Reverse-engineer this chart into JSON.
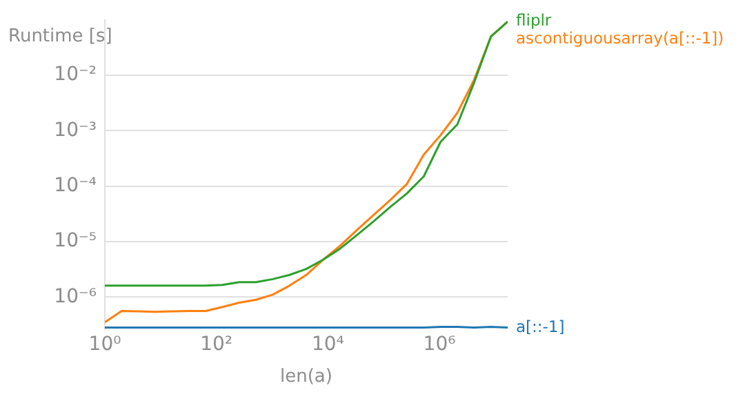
{
  "chart_data": {
    "type": "line",
    "ylabel": "Runtime [s]",
    "xlabel": "len(a)",
    "log": "xy",
    "grid": "y",
    "legend": false,
    "marker": "none",
    "line_style": "solid",
    "x": [
      1,
      2,
      4,
      8,
      16,
      32,
      64,
      128,
      256,
      512,
      1024,
      2048,
      4096,
      8192,
      16384,
      32768,
      65536,
      131072,
      262144,
      524288,
      1048576,
      2097152,
      4194304,
      8388608,
      16777216
    ],
    "xlim": [
      1,
      16777216
    ],
    "ylim": [
      2.6e-07,
      0.1
    ],
    "xticks": [
      {
        "value": 1,
        "label": "10⁰"
      },
      {
        "value": 100,
        "label": "10²"
      },
      {
        "value": 10000,
        "label": "10⁴"
      },
      {
        "value": 1000000,
        "label": "10⁶"
      }
    ],
    "yticks": [
      {
        "value": 1e-06,
        "label": "10⁻⁶"
      },
      {
        "value": 1e-05,
        "label": "10⁻⁵"
      },
      {
        "value": 0.0001,
        "label": "10⁻⁴"
      },
      {
        "value": 0.001,
        "label": "10⁻³"
      },
      {
        "value": 0.01,
        "label": "10⁻²"
      }
    ],
    "series": [
      {
        "name": "a[::-1]",
        "color": "#1f77b4",
        "values": [
          2.8e-07,
          2.8e-07,
          2.8e-07,
          2.8e-07,
          2.8e-07,
          2.8e-07,
          2.8e-07,
          2.8e-07,
          2.8e-07,
          2.8e-07,
          2.8e-07,
          2.8e-07,
          2.8e-07,
          2.8e-07,
          2.8e-07,
          2.8e-07,
          2.8e-07,
          2.8e-07,
          2.8e-07,
          2.8e-07,
          2.9e-07,
          2.9e-07,
          2.8e-07,
          2.9e-07,
          2.8e-07
        ]
      },
      {
        "name": "fliplr",
        "color": "#2ca02c",
        "values": [
          1.6e-06,
          1.6e-06,
          1.6e-06,
          1.6e-06,
          1.6e-06,
          1.6e-06,
          1.6e-06,
          1.65e-06,
          1.85e-06,
          1.85e-06,
          2.1e-06,
          2.5e-06,
          3.2e-06,
          4.7e-06,
          7.4e-06,
          1.3e-05,
          2.3e-05,
          4.2e-05,
          7.4e-05,
          0.00015,
          0.00063,
          0.0013,
          0.0074,
          0.05,
          0.093
        ]
      },
      {
        "name": "ascontiguousarray(a[::-1])",
        "color": "#ff7f0e",
        "values": [
          3.5e-07,
          5.6e-07,
          5.5e-07,
          5.4e-07,
          5.5e-07,
          5.6e-07,
          5.6e-07,
          6.6e-07,
          7.9e-07,
          8.9e-07,
          1.1e-06,
          1.6e-06,
          2.5e-06,
          4.7e-06,
          8.3e-06,
          1.6e-05,
          3e-05,
          5.6e-05,
          0.00011,
          0.00037,
          0.00083,
          0.0021,
          0.0083,
          0.05,
          0.093
        ]
      }
    ]
  }
}
